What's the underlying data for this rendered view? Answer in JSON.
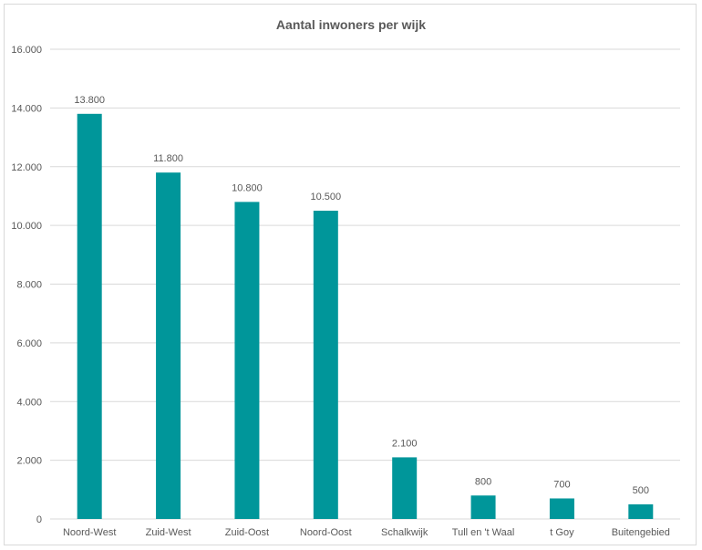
{
  "chart_data": {
    "type": "bar",
    "title": "Aantal inwoners per wijk",
    "xlabel": "",
    "ylabel": "",
    "categories": [
      "Noord-West",
      "Zuid-West",
      "Zuid-Oost",
      "Noord-Oost",
      "Schalkwijk",
      "Tull en 't Waal",
      "t Goy",
      "Buitengebied"
    ],
    "values": [
      13800,
      11800,
      10800,
      10500,
      2100,
      800,
      700,
      500
    ],
    "data_labels": [
      "13.800",
      "11.800",
      "10.800",
      "10.500",
      "2.100",
      "800",
      "700",
      "500"
    ],
    "ylim": [
      0,
      16000
    ],
    "yticks": [
      0,
      2000,
      4000,
      6000,
      8000,
      10000,
      12000,
      14000,
      16000
    ],
    "ytick_labels": [
      "0",
      "2.000",
      "4.000",
      "6.000",
      "8.000",
      "10.000",
      "12.000",
      "14.000",
      "16.000"
    ],
    "grid": true,
    "legend": "none",
    "bar_color": "#00969a"
  }
}
